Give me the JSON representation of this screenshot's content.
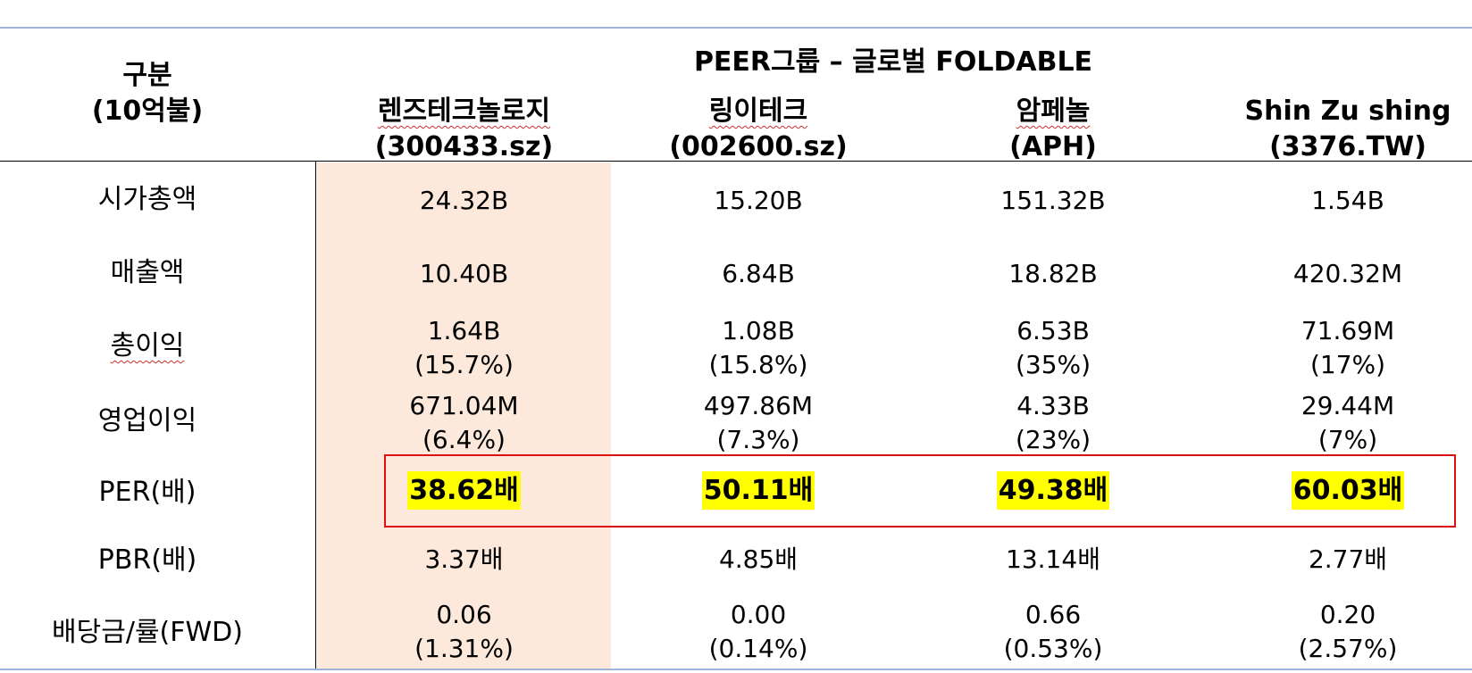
{
  "header": {
    "category_line1": "구분",
    "category_line2": "(10억불)",
    "group_title": "PEER그룹 – 글로벌 FOLDABLE"
  },
  "companies": [
    {
      "name": "렌즈테크놀로지",
      "ticker": "(300433.sz)"
    },
    {
      "name": "링이테크",
      "ticker": "(002600.sz)"
    },
    {
      "name": "암페놀",
      "ticker": "(APH)"
    },
    {
      "name": "Shin Zu shing",
      "ticker": "(3376.TW)"
    }
  ],
  "rows": [
    {
      "label": "시가총액",
      "values": [
        [
          "24.32B"
        ],
        [
          "15.20B"
        ],
        [
          "151.32B"
        ],
        [
          "1.54B"
        ]
      ]
    },
    {
      "label": "매출액",
      "values": [
        [
          "10.40B"
        ],
        [
          "6.84B"
        ],
        [
          "18.82B"
        ],
        [
          "420.32M"
        ]
      ]
    },
    {
      "label": "총이익",
      "values": [
        [
          "1.64B",
          "(15.7%)"
        ],
        [
          "1.08B",
          "(15.8%)"
        ],
        [
          "6.53B",
          "(35%)"
        ],
        [
          "71.69M",
          "(17%)"
        ]
      ]
    },
    {
      "label": "영업이익",
      "values": [
        [
          "671.04M",
          "(6.4%)"
        ],
        [
          "497.86M",
          "(7.3%)"
        ],
        [
          "4.33B",
          "(23%)"
        ],
        [
          "29.44M",
          "(7%)"
        ]
      ]
    },
    {
      "label": "PER(배)",
      "values": [
        [
          "38.62배"
        ],
        [
          "50.11배"
        ],
        [
          "49.38배"
        ],
        [
          "60.03배"
        ]
      ]
    },
    {
      "label": "PBR(배)",
      "values": [
        [
          "3.37배"
        ],
        [
          "4.85배"
        ],
        [
          "13.14배"
        ],
        [
          "2.77배"
        ]
      ]
    },
    {
      "label": "배당금/률(FWD)",
      "values": [
        [
          "0.06",
          "(1.31%)"
        ],
        [
          "0.00",
          "(0.14%)"
        ],
        [
          "0.66",
          "(0.53%)"
        ],
        [
          "0.20",
          "(2.57%)"
        ]
      ]
    }
  ],
  "colors": {
    "highlight_column": "#fde9dc",
    "per_highlight": "#ffff00",
    "per_box": "#e01010",
    "rule_lines": "#9fb3d6"
  }
}
